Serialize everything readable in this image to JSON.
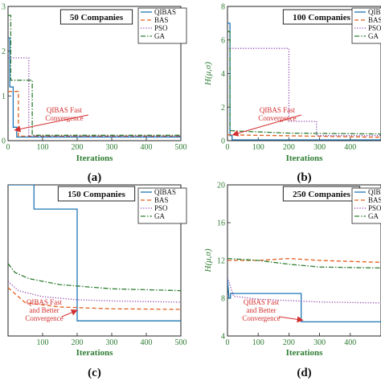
{
  "colors": {
    "QIBAS": "#1f77b4",
    "BAS": "#e06020",
    "PSO": "#8e44ad",
    "GA": "#2e7d32",
    "axis": "#2e7d32",
    "annotation": "#d32f2f"
  },
  "chart_data": [
    {
      "type": "line",
      "title": "50 Companies",
      "panel_label": "(a)",
      "xlabel": "Iterations",
      "ylabel": "",
      "xlim": [
        0,
        500
      ],
      "ylim": [
        0,
        3
      ],
      "xticks": [
        "0",
        "100",
        "200",
        "300",
        "400",
        "500"
      ],
      "yticks": [
        "0",
        "1",
        "2",
        "3"
      ],
      "legend": "top-right",
      "annotation": {
        "lines": [
          "QIBAS Fast",
          "Convergence"
        ],
        "target": [
          15,
          0.2
        ]
      },
      "series": [
        {
          "name": "QIBAS",
          "style": "solid",
          "points": [
            [
              0,
              2.3
            ],
            [
              5,
              2.3
            ],
            [
              5,
              1.2
            ],
            [
              15,
              1.2
            ],
            [
              15,
              0.3
            ],
            [
              25,
              0.3
            ],
            [
              25,
              0.08
            ],
            [
              500,
              0.08
            ]
          ]
        },
        {
          "name": "BAS",
          "style": "dashed",
          "points": [
            [
              0,
              1.1
            ],
            [
              30,
              1.1
            ],
            [
              30,
              0.1
            ],
            [
              500,
              0.1
            ]
          ]
        },
        {
          "name": "PSO",
          "style": "dotted",
          "points": [
            [
              0,
              1.85
            ],
            [
              60,
              1.85
            ],
            [
              60,
              0.1
            ],
            [
              500,
              0.1
            ]
          ]
        },
        {
          "name": "GA",
          "style": "dashdot",
          "points": [
            [
              0,
              2.8
            ],
            [
              8,
              2.8
            ],
            [
              8,
              1.35
            ],
            [
              70,
              1.35
            ],
            [
              70,
              0.12
            ],
            [
              500,
              0.12
            ]
          ]
        }
      ]
    },
    {
      "type": "line",
      "title": "100 Companies",
      "panel_label": "(b)",
      "xlabel": "Iterations",
      "ylabel": "H(μ,σ)",
      "xlim": [
        0,
        500
      ],
      "ylim": [
        0,
        8
      ],
      "xticks": [
        "0",
        "100",
        "200",
        "300",
        "400"
      ],
      "yticks": [
        "0",
        "2",
        "4",
        "6",
        "8"
      ],
      "legend": "top-right",
      "annotation": {
        "lines": [
          "QIBAS Fast",
          "Convergence"
        ],
        "target": [
          12,
          0.25
        ]
      },
      "series": [
        {
          "name": "QIBAS",
          "style": "solid",
          "points": [
            [
              0,
              7
            ],
            [
              8,
              7
            ],
            [
              8,
              0.3
            ],
            [
              15,
              0.3
            ],
            [
              15,
              0.05
            ],
            [
              500,
              0.05
            ]
          ]
        },
        {
          "name": "BAS",
          "style": "dashed",
          "points": [
            [
              0,
              0.35
            ],
            [
              500,
              0.2
            ]
          ]
        },
        {
          "name": "PSO",
          "style": "dotted",
          "points": [
            [
              0,
              5.5
            ],
            [
              200,
              5.5
            ],
            [
              200,
              1.15
            ],
            [
              290,
              1.15
            ],
            [
              290,
              0.3
            ],
            [
              500,
              0.3
            ]
          ]
        },
        {
          "name": "GA",
          "style": "dashdot",
          "points": [
            [
              0,
              6.5
            ],
            [
              8,
              6.5
            ],
            [
              8,
              0.6
            ],
            [
              60,
              0.55
            ],
            [
              200,
              0.45
            ],
            [
              500,
              0.4
            ]
          ]
        }
      ]
    },
    {
      "type": "line",
      "title": "150 Companies",
      "panel_label": "(c)",
      "xlabel": "Iterations",
      "ylabel": "",
      "xlim": [
        0,
        500
      ],
      "ylim": [
        0,
        25
      ],
      "xticks": [
        "100",
        "200",
        "300",
        "400",
        "500"
      ],
      "yticks": [],
      "legend": "top-right",
      "annotation": {
        "lines": [
          "QIBAS Fast",
          "and Better",
          "Convergence"
        ],
        "target": [
          195,
          4
        ]
      },
      "series": [
        {
          "name": "QIBAS",
          "style": "solid",
          "points": [
            [
              0,
              25
            ],
            [
              75,
              25
            ],
            [
              75,
              21
            ],
            [
              200,
              21
            ],
            [
              200,
              2.5
            ],
            [
              500,
              2.5
            ]
          ]
        },
        {
          "name": "BAS",
          "style": "dashed",
          "points": [
            [
              0,
              8
            ],
            [
              50,
              5.5
            ],
            [
              150,
              4.8
            ],
            [
              300,
              4.5
            ],
            [
              500,
              4.4
            ]
          ]
        },
        {
          "name": "PSO",
          "style": "dotted",
          "points": [
            [
              0,
              9
            ],
            [
              30,
              7.5
            ],
            [
              100,
              6.5
            ],
            [
              200,
              6
            ],
            [
              300,
              5.8
            ],
            [
              500,
              5.6
            ]
          ]
        },
        {
          "name": "GA",
          "style": "dashdot",
          "points": [
            [
              0,
              12
            ],
            [
              20,
              10.5
            ],
            [
              60,
              9.5
            ],
            [
              150,
              8.5
            ],
            [
              300,
              7.8
            ],
            [
              500,
              7.5
            ]
          ]
        }
      ]
    },
    {
      "type": "line",
      "title": "250 Companies",
      "panel_label": "(d)",
      "xlabel": "Iterations",
      "ylabel": "H(μ,σ)",
      "xlim": [
        0,
        500
      ],
      "ylim": [
        4,
        20
      ],
      "xticks": [
        "0",
        "100",
        "200",
        "300",
        "400"
      ],
      "yticks": [
        "4",
        "8",
        "12",
        "16",
        "20"
      ],
      "legend": "top-right",
      "annotation": {
        "lines": [
          "QIBAS Fast",
          "and Better",
          "Convergence"
        ],
        "target": [
          240,
          5.5
        ]
      },
      "series": [
        {
          "name": "QIBAS",
          "style": "solid",
          "points": [
            [
              0,
              10
            ],
            [
              5,
              8
            ],
            [
              10,
              8
            ],
            [
              10,
              8.5
            ],
            [
              240,
              8.5
            ],
            [
              240,
              5.5
            ],
            [
              500,
              5.5
            ]
          ]
        },
        {
          "name": "BAS",
          "style": "dashed",
          "points": [
            [
              0,
              12
            ],
            [
              100,
              12
            ],
            [
              200,
              12.2
            ],
            [
              300,
              12
            ],
            [
              500,
              11.8
            ]
          ]
        },
        {
          "name": "PSO",
          "style": "dotted",
          "points": [
            [
              0,
              10.2
            ],
            [
              20,
              8.2
            ],
            [
              100,
              7.9
            ],
            [
              300,
              7.6
            ],
            [
              500,
              7.5
            ]
          ]
        },
        {
          "name": "GA",
          "style": "dashdot",
          "points": [
            [
              0,
              12.2
            ],
            [
              100,
              12
            ],
            [
              200,
              11.6
            ],
            [
              300,
              11.3
            ],
            [
              500,
              11.2
            ]
          ]
        }
      ]
    }
  ]
}
